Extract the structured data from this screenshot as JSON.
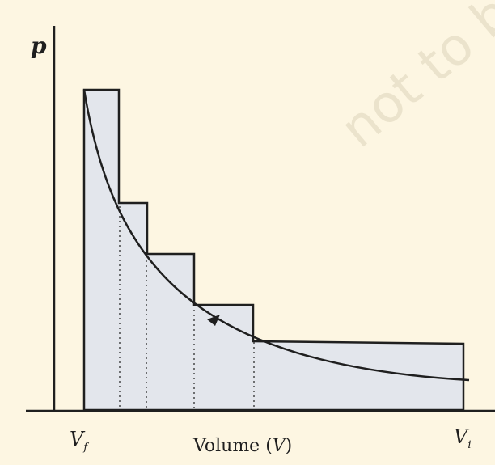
{
  "watermark": "not to be",
  "axis": {
    "y_label": "p",
    "x_label_prefix": "Volume (",
    "x_label_var": "V",
    "x_label_suffix": ")",
    "left_tick": {
      "main": "V",
      "sub": "f"
    },
    "right_tick": {
      "main": "V",
      "sub": "i"
    }
  },
  "colors": {
    "background": "#fdf6e2",
    "step_fill": "#e3e6ec",
    "line": "#1f1f1f",
    "watermark": "#ebe3cc"
  },
  "icons": {
    "arrowhead": "arrow-head-icon"
  }
}
